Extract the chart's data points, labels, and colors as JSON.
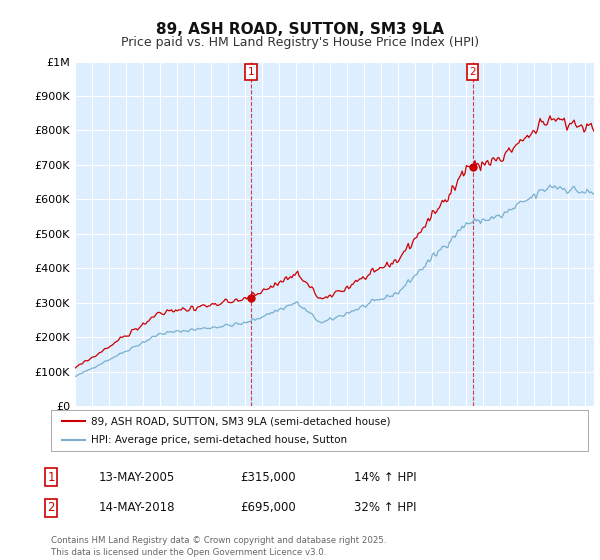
{
  "title": "89, ASH ROAD, SUTTON, SM3 9LA",
  "subtitle": "Price paid vs. HM Land Registry's House Price Index (HPI)",
  "ylim": [
    0,
    1000000
  ],
  "yticks": [
    0,
    100000,
    200000,
    300000,
    400000,
    500000,
    600000,
    700000,
    800000,
    900000,
    1000000
  ],
  "ytick_labels": [
    "£0",
    "£100K",
    "£200K",
    "£300K",
    "£400K",
    "£500K",
    "£600K",
    "£700K",
    "£800K",
    "£900K",
    "£1M"
  ],
  "sale1_year": 2005.36,
  "sale1_price": 315000,
  "sale2_year": 2018.36,
  "sale2_price": 695000,
  "line1_color": "#cc0000",
  "line2_color": "#7aafcc",
  "vline_color": "#cc0000",
  "bg_color": "#ffffff",
  "plot_bg_color": "#ddeeff",
  "grid_color": "#ffffff",
  "legend1_label": "89, ASH ROAD, SUTTON, SM3 9LA (semi-detached house)",
  "legend2_label": "HPI: Average price, semi-detached house, Sutton",
  "sale1_text": "13-MAY-2005",
  "sale1_price_text": "£315,000",
  "sale1_hpi_text": "14% ↑ HPI",
  "sale2_text": "14-MAY-2018",
  "sale2_price_text": "£695,000",
  "sale2_hpi_text": "32% ↑ HPI",
  "footer": "Contains HM Land Registry data © Crown copyright and database right 2025.\nThis data is licensed under the Open Government Licence v3.0.",
  "title_fontsize": 11,
  "subtitle_fontsize": 9,
  "tick_fontsize": 8
}
